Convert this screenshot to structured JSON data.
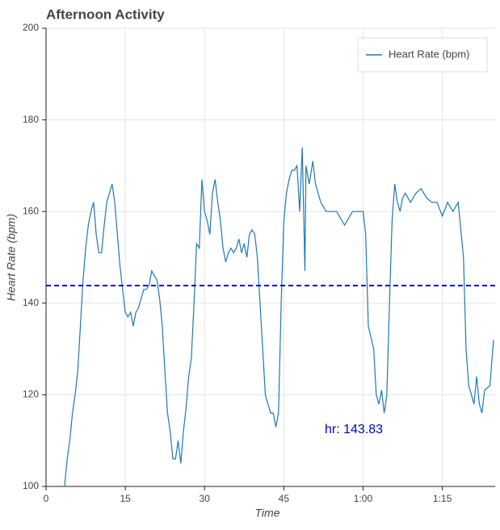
{
  "chart_data": {
    "type": "line",
    "title": "Afternoon Activity",
    "x_label": "Time",
    "y_label": "Heart Rate (bpm)",
    "x": [
      3.5,
      4,
      4.5,
      5,
      5.5,
      6,
      6.5,
      7,
      7.5,
      8,
      8.5,
      9,
      9.5,
      10,
      10.5,
      11,
      11.5,
      12,
      12.5,
      13,
      13.5,
      14,
      14.5,
      15,
      15.5,
      16,
      16.5,
      17,
      17.5,
      18,
      18.5,
      19,
      19.5,
      20,
      20.5,
      21,
      21.5,
      22,
      22.5,
      23,
      23.5,
      24,
      24.5,
      25,
      25.5,
      26,
      26.5,
      27,
      27.5,
      28,
      28.5,
      29,
      29.5,
      30,
      30.5,
      31,
      31.5,
      32,
      32.5,
      33,
      33.5,
      34,
      34.5,
      35,
      35.5,
      36,
      36.5,
      37,
      37.5,
      38,
      38.5,
      39,
      39.5,
      40,
      40.5,
      41,
      41.5,
      42,
      42.5,
      43,
      43.5,
      44,
      44.5,
      45,
      45.5,
      46,
      46.5,
      47,
      47.5,
      48,
      48.5,
      49,
      49.2,
      49.8,
      50.5,
      51,
      52,
      53,
      54,
      55,
      56,
      56.5,
      57,
      58,
      59,
      60,
      60.5,
      61,
      62,
      62.5,
      63,
      63.5,
      64,
      64.5,
      65,
      65.5,
      66,
      66.5,
      67,
      67.5,
      68,
      69,
      70,
      71,
      72,
      73,
      74,
      75,
      76,
      77,
      78,
      79,
      79.5,
      80,
      80.5,
      81,
      81.5,
      82,
      82.5,
      83,
      84,
      84.7
    ],
    "series": [
      {
        "name": "Heart Rate (bpm)",
        "color": "#1f77b4",
        "values": [
          100,
          106,
          110,
          116,
          120,
          125,
          135,
          145,
          152,
          157,
          160,
          162,
          155,
          151,
          151,
          157,
          162,
          164,
          166,
          162,
          155,
          148,
          143,
          138,
          137,
          138,
          135,
          138,
          139,
          141,
          143,
          143,
          144,
          147,
          146,
          145,
          141,
          135,
          125,
          116,
          112,
          106,
          106,
          110,
          105,
          112,
          117,
          124,
          128,
          140,
          153,
          152,
          167,
          160,
          158,
          155,
          164,
          167,
          162,
          158,
          152,
          149,
          151,
          152,
          151,
          152,
          154,
          151,
          153,
          150,
          155,
          156,
          155,
          150,
          140,
          130,
          120,
          118,
          116,
          116,
          113,
          116,
          140,
          158,
          164,
          167,
          169,
          169,
          170,
          160,
          174,
          147,
          170,
          166,
          171,
          166,
          162,
          160,
          160,
          160,
          158,
          157,
          158,
          160,
          160,
          160,
          155,
          135,
          130,
          120,
          118,
          121,
          116,
          120,
          140,
          158,
          166,
          162,
          160,
          163,
          164,
          162,
          164,
          165,
          163,
          162,
          162,
          159,
          162,
          160,
          162,
          150,
          130,
          122,
          120,
          118,
          124,
          118,
          116,
          121,
          122,
          132
        ]
      }
    ],
    "mean_line": {
      "value": 143.83,
      "label": "hr: 143.83",
      "color": "#0000cc"
    },
    "xlim": [
      0,
      85
    ],
    "ylim": [
      100,
      200
    ],
    "xticks": [
      0,
      15,
      30,
      45,
      {
        "value": 60,
        "label": "1:00"
      },
      {
        "value": 75,
        "label": "1:15"
      }
    ],
    "yticks": [
      100,
      120,
      140,
      160,
      180,
      200
    ],
    "grid": true,
    "legend": "top-right"
  }
}
